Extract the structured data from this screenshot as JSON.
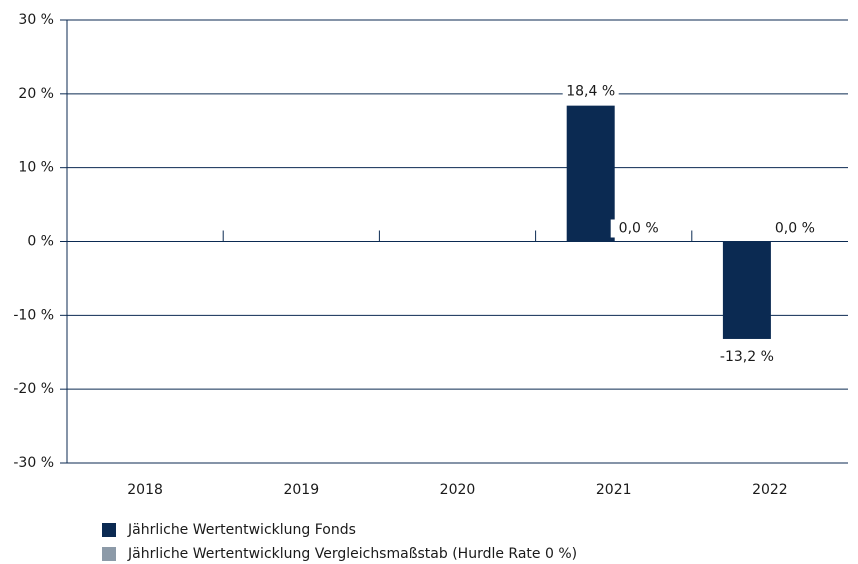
{
  "chart_data": {
    "type": "bar",
    "categories": [
      "2018",
      "2019",
      "2020",
      "2021",
      "2022"
    ],
    "series": [
      {
        "name": "Jährliche Wertentwicklung Fonds",
        "color": "#0b2a52",
        "values": [
          null,
          null,
          null,
          18.4,
          -13.2
        ],
        "value_labels": [
          null,
          null,
          null,
          "18,4 %",
          "-13,2 %"
        ]
      },
      {
        "name": "Jährliche Wertentwicklung Vergleichsmaßstab (Hurdle Rate 0 %)",
        "color": "#8c9aa8",
        "values": [
          null,
          null,
          null,
          0,
          0
        ],
        "value_labels": [
          null,
          null,
          null,
          "0,0 %",
          "0,0 %"
        ]
      }
    ],
    "ylim": [
      -30,
      30
    ],
    "yticks": [
      {
        "value": -30,
        "label": "-30 %"
      },
      {
        "value": -20,
        "label": "-20 %"
      },
      {
        "value": -10,
        "label": "-10 %"
      },
      {
        "value": 0,
        "label": "0 %"
      },
      {
        "value": 10,
        "label": "10 %"
      },
      {
        "value": 20,
        "label": "20 %"
      },
      {
        "value": 30,
        "label": "30 %"
      }
    ],
    "grid": true
  }
}
